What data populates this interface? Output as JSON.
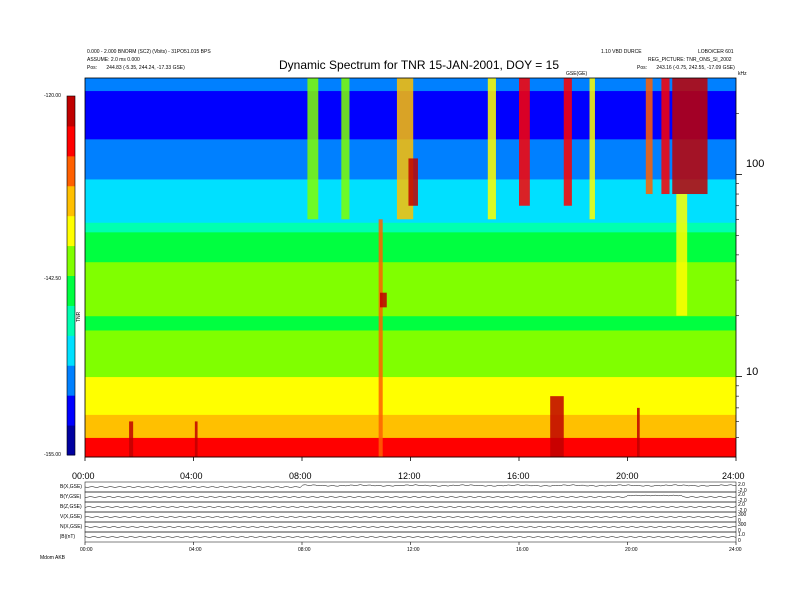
{
  "header": {
    "title": "Dynamic Spectrum for TNR 15-JAN-2001, DOY = 15",
    "left_line1": "0.000 - 2.000 BNORM (SC2) (Vbits) - 31PO51.015 BPS",
    "left_line2": "ASSUME: 2.0 ms 0.000",
    "left_pos_label": "Pos:",
    "left_pos_value": "244.83 (-5.35, 244.24, -17.33 GSE)",
    "right_line1": "1.10 VBD DURCE",
    "right_line1b": "LOBO/CER 601",
    "right_line2": "REG_PICTURE: TNR_ONS_SI_2002",
    "right_pos_label": "Pos:",
    "right_pos_value": "243.16 (-0.75, 242.55, -17.09 GSE)",
    "center_label": "GSE(GE)",
    "freq_unit": "kHz"
  },
  "colorbar": {
    "top_label": "-120.00",
    "mid_label": "-142.50",
    "bottom_label": "-155.00",
    "side_label": "TNR",
    "colors": [
      "#0000a0",
      "#0000ff",
      "#0080ff",
      "#00e0ff",
      "#00ffb0",
      "#00ff40",
      "#80ff00",
      "#ffff00",
      "#ffc000",
      "#ff6000",
      "#ff0000",
      "#c00000"
    ]
  },
  "chart_data": {
    "type": "heatmap",
    "title": "Dynamic Spectrum for TNR 15-JAN-2001, DOY = 15",
    "x_ticks": [
      "00:00",
      "04:00",
      "08:00",
      "12:00",
      "16:00",
      "20:00",
      "24:00"
    ],
    "x_range_hours": [
      0,
      24
    ],
    "y_scale": "log",
    "y_unit": "kHz",
    "y_ticks": [
      "100",
      "10"
    ],
    "y_tick_values": [
      100,
      10
    ],
    "y_range_khz": [
      4,
      300
    ],
    "color_range": [
      -155.0,
      -120.0
    ],
    "bands": [
      {
        "from_khz": 4,
        "to_khz": 5,
        "level": 0.9
      },
      {
        "from_khz": 5,
        "to_khz": 6.5,
        "level": 0.75
      },
      {
        "from_khz": 6.5,
        "to_khz": 10,
        "level": 0.62
      },
      {
        "from_khz": 10,
        "to_khz": 14,
        "level": 0.58
      },
      {
        "from_khz": 14,
        "to_khz": 17,
        "level": 0.52
      },
      {
        "from_khz": 17,
        "to_khz": 20,
        "level": 0.45
      },
      {
        "from_khz": 20,
        "to_khz": 21.5,
        "level": 0.5
      },
      {
        "from_khz": 21.5,
        "to_khz": 27,
        "level": 0.57
      },
      {
        "from_khz": 27,
        "to_khz": 37,
        "level": 0.53
      },
      {
        "from_khz": 37,
        "to_khz": 52,
        "level": 0.43
      },
      {
        "from_khz": 52,
        "to_khz": 58,
        "level": 0.35
      },
      {
        "from_khz": 58,
        "to_khz": 95,
        "level": 0.3
      },
      {
        "from_khz": 95,
        "to_khz": 150,
        "level": 0.22
      },
      {
        "from_khz": 150,
        "to_khz": 260,
        "level": 0.12
      },
      {
        "from_khz": 260,
        "to_khz": 300,
        "level": 0.2
      }
    ],
    "bursts": [
      {
        "t_hours": 1.7,
        "width_hours": 0.15,
        "from_khz": 4,
        "to_khz": 6,
        "level": 1.0
      },
      {
        "t_hours": 4.1,
        "width_hours": 0.1,
        "from_khz": 4,
        "to_khz": 6,
        "level": 1.0
      },
      {
        "t_hours": 8.4,
        "width_hours": 0.4,
        "from_khz": 60,
        "to_khz": 300,
        "level": 0.55
      },
      {
        "t_hours": 9.6,
        "width_hours": 0.3,
        "from_khz": 60,
        "to_khz": 300,
        "level": 0.55
      },
      {
        "t_hours": 10.9,
        "width_hours": 0.15,
        "from_khz": 4,
        "to_khz": 60,
        "level": 0.85
      },
      {
        "t_hours": 11.0,
        "width_hours": 0.25,
        "from_khz": 22,
        "to_khz": 26,
        "level": 1.0
      },
      {
        "t_hours": 11.8,
        "width_hours": 0.6,
        "from_khz": 60,
        "to_khz": 300,
        "level": 0.7
      },
      {
        "t_hours": 12.1,
        "width_hours": 0.35,
        "from_khz": 70,
        "to_khz": 120,
        "level": 1.0
      },
      {
        "t_hours": 15.0,
        "width_hours": 0.3,
        "from_khz": 60,
        "to_khz": 300,
        "level": 0.6
      },
      {
        "t_hours": 16.2,
        "width_hours": 0.4,
        "from_khz": 70,
        "to_khz": 300,
        "level": 0.9
      },
      {
        "t_hours": 17.4,
        "width_hours": 0.5,
        "from_khz": 4,
        "to_khz": 8,
        "level": 1.0
      },
      {
        "t_hours": 17.8,
        "width_hours": 0.3,
        "from_khz": 70,
        "to_khz": 300,
        "level": 0.9
      },
      {
        "t_hours": 18.7,
        "width_hours": 0.2,
        "from_khz": 60,
        "to_khz": 300,
        "level": 0.6
      },
      {
        "t_hours": 20.4,
        "width_hours": 0.1,
        "from_khz": 4,
        "to_khz": 7,
        "level": 1.0
      },
      {
        "t_hours": 20.8,
        "width_hours": 0.25,
        "from_khz": 80,
        "to_khz": 300,
        "level": 0.8
      },
      {
        "t_hours": 21.4,
        "width_hours": 0.3,
        "from_khz": 80,
        "to_khz": 300,
        "level": 0.9
      },
      {
        "t_hours": 22.3,
        "width_hours": 1.3,
        "from_khz": 80,
        "to_khz": 300,
        "level": 1.0
      },
      {
        "t_hours": 22.0,
        "width_hours": 0.4,
        "from_khz": 20,
        "to_khz": 80,
        "level": 0.6
      }
    ]
  },
  "panels": {
    "rows": [
      {
        "label": "B(X,GSE)",
        "right_top": "2.0",
        "right_bottom": "-2.0"
      },
      {
        "label": "B(Y,GSE)",
        "right_top": "2.0",
        "right_bottom": "-2.0"
      },
      {
        "label": "B(Z,GSE)",
        "right_top": "2.0",
        "right_bottom": "-2.0"
      },
      {
        "label": "V(X,GSE)",
        "right_top": "300",
        "right_bottom": "0"
      },
      {
        "label": "N(X,GSE)",
        "right_top": "300",
        "right_bottom": "0"
      },
      {
        "label": "|B|(nT)",
        "right_top": "1.0",
        "right_bottom": "0"
      }
    ],
    "x_ticks": [
      "00:00",
      "04:00",
      "08:00",
      "12:00",
      "16:00",
      "20:00",
      "24:00"
    ],
    "footer": "Mdom  AKB"
  }
}
